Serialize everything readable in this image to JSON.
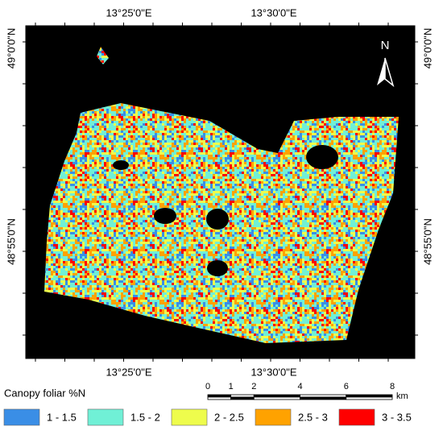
{
  "map": {
    "top_labels": [
      "13°25'0\"E",
      "13°30'0\"E"
    ],
    "bottom_labels": [
      "13°25'0\"E",
      "13°30'0\"E"
    ],
    "left_labels": [
      "49°0'0\"N",
      "48°55'0\"N"
    ],
    "right_labels": [
      "49°0'0\"N",
      "48°55'0\"N"
    ],
    "north": "N",
    "legend_title": "Canopy foliar %N",
    "legend": [
      {
        "label": "1 - 1.5",
        "color": "#3a8ee6"
      },
      {
        "label": "1.5 - 2",
        "color": "#70f0d6"
      },
      {
        "label": "2 - 2.5",
        "color": "#eefc4c"
      },
      {
        "label": "2.5 - 3",
        "color": "#ffa200"
      },
      {
        "label": "3 - 3.5",
        "color": "#ff0000"
      }
    ],
    "scale_ticks": [
      0,
      1,
      2,
      4,
      6,
      8
    ],
    "scale_unit": "km"
  }
}
